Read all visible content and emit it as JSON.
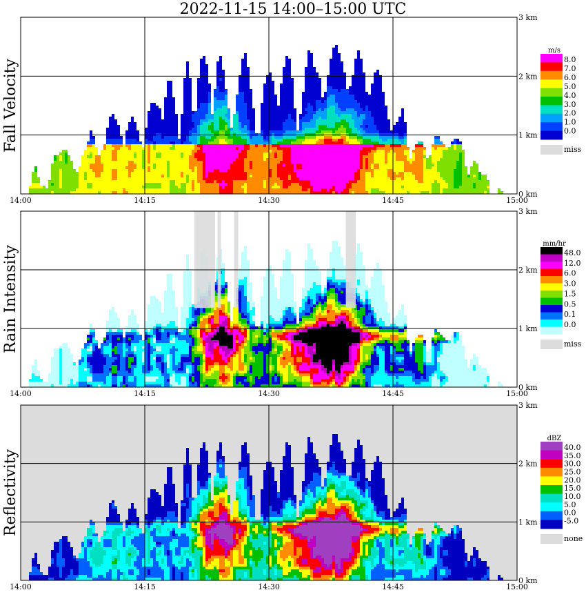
{
  "title": "2022-11-15   14:00–15:00 UTC",
  "colors": {
    "missing": "#dcdcdc",
    "grid": "#000000",
    "background": "#ffffff"
  },
  "chart_data": [
    {
      "type": "heatmap",
      "ylabel": "Fall Velocity",
      "x_ticks": [
        "14:00",
        "14:15",
        "14:30",
        "14:45",
        "15:00"
      ],
      "y_ticks": [
        "0 km",
        "1 km",
        "2 km",
        "3 km"
      ],
      "xlim": [
        "14:00",
        "15:00"
      ],
      "ylim": [
        0,
        3
      ],
      "grid": true,
      "legend_position": "right",
      "legend": {
        "unit": "m/s",
        "labels": [
          "8.0",
          "7.0",
          "6.0",
          "5.0",
          "4.0",
          "3.0",
          "2.0",
          "1.0",
          "0.0"
        ],
        "colors": [
          "#ff00ff",
          "#ff0000",
          "#ff8c00",
          "#ffff00",
          "#7fe000",
          "#00c000",
          "#00e0c0",
          "#00a0ff",
          "#0040ff",
          "#0000d0"
        ],
        "missing_label": "miss"
      }
    },
    {
      "type": "heatmap",
      "ylabel": "Rain Intensity",
      "x_ticks": [
        "14:00",
        "14:15",
        "14:30",
        "14:45",
        "15:00"
      ],
      "y_ticks": [
        "0 km",
        "1 km",
        "2 km",
        "3 km"
      ],
      "xlim": [
        "14:00",
        "15:00"
      ],
      "ylim": [
        0,
        3
      ],
      "grid": true,
      "legend_position": "right",
      "legend": {
        "unit": "mm/hr",
        "labels": [
          "48.0",
          "12.0",
          "6.0",
          "3.0",
          "1.5",
          "0.5",
          "0.1",
          "0.0"
        ],
        "colors": [
          "#000000",
          "#c000c0",
          "#ff00ff",
          "#ff0000",
          "#ff8c00",
          "#ffff00",
          "#7fe000",
          "#00c000",
          "#0000d0",
          "#0070ff",
          "#00ffff",
          "#c0ffff"
        ],
        "missing_label": "miss"
      }
    },
    {
      "type": "heatmap",
      "ylabel": "Reflectivity",
      "x_ticks": [
        "14:00",
        "14:15",
        "14:30",
        "14:45",
        "15:00"
      ],
      "y_ticks": [
        "0 km",
        "1 km",
        "2 km",
        "3 km"
      ],
      "xlim": [
        "14:00",
        "15:00"
      ],
      "ylim": [
        0,
        3
      ],
      "grid": true,
      "legend_position": "right",
      "legend": {
        "unit": "dBZ",
        "labels": [
          "40.0",
          "35.0",
          "30.0",
          "25.0",
          "20.0",
          "15.0",
          "10.0",
          "5.0",
          "0.0",
          "-5.0"
        ],
        "colors": [
          "#a040c0",
          "#c000c0",
          "#ff0000",
          "#ff8c00",
          "#ffff00",
          "#00c000",
          "#00e0c0",
          "#00ffff",
          "#0060ff",
          "#0000c0"
        ],
        "missing_label": "none"
      }
    }
  ]
}
